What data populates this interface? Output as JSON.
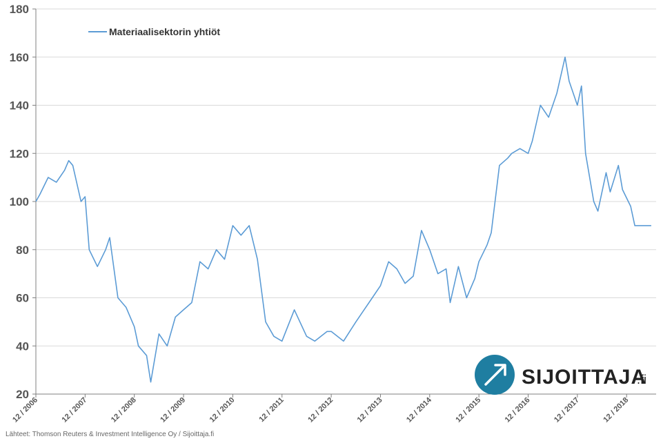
{
  "chart_data": {
    "type": "line",
    "ylim": [
      20,
      180
    ],
    "yticks": [
      20,
      40,
      60,
      80,
      100,
      120,
      140,
      160,
      180
    ],
    "grid": true,
    "legend": "top-left",
    "series_color": "#5b9bd5",
    "categories": [
      "12 / 2006",
      "12 / 2007",
      "12 / 2008",
      "12 / 2009",
      "12 / 2010",
      "12 / 2011",
      "12 / 2012",
      "12 / 2013",
      "12 / 2014",
      "12 / 2015",
      "12 / 2016",
      "12 / 2017",
      "12 / 2018"
    ],
    "series": [
      {
        "name": "Materiaalisektorin yhtiöt",
        "x": [
          "2006-12",
          "2007-01",
          "2007-03",
          "2007-05",
          "2007-07",
          "2007-08",
          "2007-09",
          "2007-11",
          "2007-12",
          "2008-01",
          "2008-03",
          "2008-05",
          "2008-06",
          "2008-08",
          "2008-10",
          "2008-12",
          "2009-01",
          "2009-03",
          "2009-04",
          "2009-06",
          "2009-08",
          "2009-10",
          "2009-12",
          "2010-02",
          "2010-04",
          "2010-06",
          "2010-08",
          "2010-10",
          "2010-12",
          "2011-02",
          "2011-04",
          "2011-06",
          "2011-08",
          "2011-10",
          "2011-12",
          "2012-03",
          "2012-06",
          "2012-08",
          "2012-11",
          "2012-12",
          "2013-03",
          "2013-06",
          "2013-08",
          "2013-10",
          "2013-12",
          "2014-02",
          "2014-04",
          "2014-06",
          "2014-08",
          "2014-10",
          "2014-12",
          "2015-02",
          "2015-04",
          "2015-05",
          "2015-07",
          "2015-09",
          "2015-11",
          "2015-12",
          "2016-02",
          "2016-03",
          "2016-05",
          "2016-07",
          "2016-08",
          "2016-10",
          "2016-12",
          "2017-01",
          "2017-03",
          "2017-05",
          "2017-07",
          "2017-09",
          "2017-10",
          "2017-12",
          "2018-01",
          "2018-02",
          "2018-04",
          "2018-05",
          "2018-07",
          "2018-08",
          "2018-10",
          "2018-11",
          "2019-01",
          "2019-02",
          "2019-04",
          "2019-06"
        ],
        "values": [
          100,
          103,
          110,
          108,
          113,
          117,
          115,
          100,
          102,
          80,
          73,
          80,
          85,
          60,
          56,
          48,
          40,
          36,
          25,
          45,
          40,
          52,
          55,
          58,
          75,
          72,
          80,
          76,
          90,
          86,
          90,
          76,
          50,
          44,
          42,
          55,
          44,
          42,
          46,
          46,
          42,
          50,
          55,
          60,
          65,
          75,
          72,
          66,
          69,
          88,
          80,
          70,
          72,
          58,
          73,
          60,
          68,
          75,
          82,
          87,
          115,
          118,
          120,
          122,
          120,
          125,
          140,
          135,
          145,
          160,
          150,
          140,
          148,
          120,
          100,
          96,
          112,
          104,
          115,
          105,
          98,
          90,
          90,
          90
        ]
      }
    ]
  },
  "legend": {
    "label": "Materiaalisektorin yhtiöt"
  },
  "source": "Lähteet: Thomson Reuters & Investment Intelligence Oy / Sijoittaja.fi",
  "brand": {
    "name": "SIJOITTAJA",
    "suffix": ".fi",
    "accent": "#1f7ea1",
    "arrow_color": "#ffffff"
  },
  "colors": {
    "grid": "#d9d9d9",
    "axis": "#7f7f7f"
  }
}
